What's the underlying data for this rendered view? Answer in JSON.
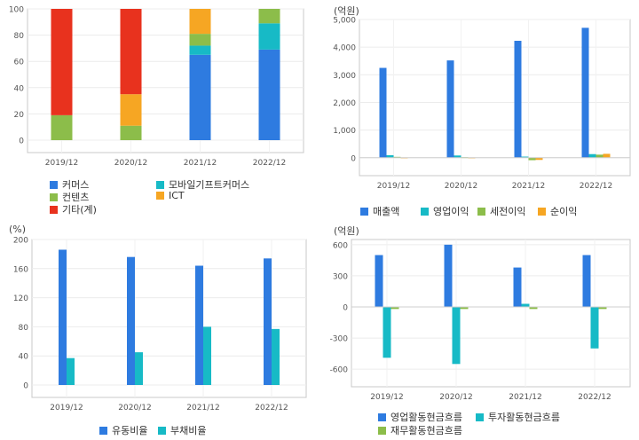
{
  "chart_data": [
    {
      "type": "bar",
      "stacked": true,
      "categories": [
        "2019/12",
        "2020/12",
        "2021/12",
        "2022/12"
      ],
      "ylim": [
        0,
        100
      ],
      "yticks": [
        0,
        20,
        40,
        60,
        80,
        100
      ],
      "grid": true,
      "legend_position": "bottom",
      "series": [
        {
          "name": "커머스",
          "color": "#2e7be0",
          "values": [
            0,
            0,
            65,
            69
          ]
        },
        {
          "name": "모바일기프트커머스",
          "color": "#17bac6",
          "values": [
            0,
            0,
            7,
            20
          ]
        },
        {
          "name": "컨텐츠",
          "color": "#8cbd4a",
          "values": [
            19,
            11,
            9,
            11
          ]
        },
        {
          "name": "ICT",
          "color": "#f6a623",
          "values": [
            0,
            24,
            19,
            0
          ]
        },
        {
          "name": "기타(계)",
          "color": "#e8321e",
          "values": [
            81,
            65,
            0,
            0
          ]
        }
      ]
    },
    {
      "type": "bar",
      "unit": "(억원)",
      "categories": [
        "2019/12",
        "2020/12",
        "2021/12",
        "2022/12"
      ],
      "ylim": [
        -200,
        5000
      ],
      "yticks": [
        0,
        1000,
        2000,
        3000,
        4000,
        5000
      ],
      "ytick_labels": [
        "0",
        "1,000",
        "2,000",
        "3,000",
        "4,000",
        "5,000"
      ],
      "grid": true,
      "legend_position": "bottom",
      "series": [
        {
          "name": "매출액",
          "color": "#2e7be0",
          "values": [
            3250,
            3520,
            4230,
            4700
          ]
        },
        {
          "name": "영업이익",
          "color": "#17bac6",
          "values": [
            90,
            80,
            40,
            130
          ]
        },
        {
          "name": "세전이익",
          "color": "#8cbd4a",
          "values": [
            30,
            20,
            -90,
            110
          ]
        },
        {
          "name": "순이익",
          "color": "#f6a623",
          "values": [
            10,
            10,
            -80,
            140
          ]
        }
      ]
    },
    {
      "type": "bar",
      "unit": "(%)",
      "categories": [
        "2019/12",
        "2020/12",
        "2021/12",
        "2022/12"
      ],
      "ylim": [
        0,
        200
      ],
      "yticks": [
        0,
        40,
        80,
        120,
        160,
        200
      ],
      "grid": true,
      "legend_position": "bottom",
      "series": [
        {
          "name": "유동비율",
          "color": "#2e7be0",
          "values": [
            186,
            176,
            164,
            174
          ]
        },
        {
          "name": "부채비율",
          "color": "#17bac6",
          "values": [
            37,
            45,
            80,
            77
          ]
        }
      ]
    },
    {
      "type": "bar",
      "unit": "(억원)",
      "categories": [
        "2019/12",
        "2020/12",
        "2021/12",
        "2022/12"
      ],
      "ylim": [
        -650,
        650
      ],
      "yticks": [
        -600,
        -300,
        0,
        300,
        600
      ],
      "ytick_labels": [
        "-600",
        "-300",
        "0",
        "300",
        "600"
      ],
      "grid": true,
      "legend_position": "bottom",
      "series": [
        {
          "name": "영업활동현금흐름",
          "color": "#2e7be0",
          "values": [
            500,
            600,
            380,
            500
          ]
        },
        {
          "name": "투자활동현금흐름",
          "color": "#17bac6",
          "values": [
            -490,
            -550,
            30,
            -400
          ]
        },
        {
          "name": "재무활동현금흐름",
          "color": "#8cbd4a",
          "values": [
            -20,
            -20,
            -20,
            -20
          ]
        }
      ]
    }
  ]
}
